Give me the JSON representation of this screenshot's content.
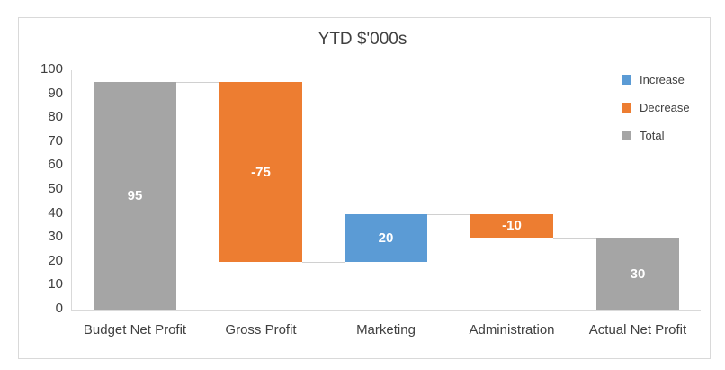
{
  "chart_data": {
    "type": "bar",
    "subtype": "waterfall",
    "title": "YTD $'000s",
    "xlabel": "",
    "ylabel": "",
    "ylim": [
      0,
      100
    ],
    "yticks": [
      0,
      10,
      20,
      30,
      40,
      50,
      60,
      70,
      80,
      90,
      100
    ],
    "grid": false,
    "legend_position": "right",
    "categories": [
      "Budget Net Profit",
      "Gross Profit",
      "Marketing",
      "Administration",
      "Actual Net Profit"
    ],
    "values": [
      95,
      -75,
      20,
      -10,
      30
    ],
    "kinds": [
      "Total",
      "Decrease",
      "Increase",
      "Decrease",
      "Total"
    ],
    "bar_ranges": [
      [
        0,
        95
      ],
      [
        20,
        95
      ],
      [
        20,
        40
      ],
      [
        30,
        40
      ],
      [
        0,
        30
      ]
    ],
    "data_labels": [
      "95",
      "-75",
      "20",
      "-10",
      "30"
    ],
    "legend": [
      {
        "name": "Increase",
        "color": "#5b9bd5"
      },
      {
        "name": "Decrease",
        "color": "#ed7d31"
      },
      {
        "name": "Total",
        "color": "#a5a5a5"
      }
    ]
  }
}
